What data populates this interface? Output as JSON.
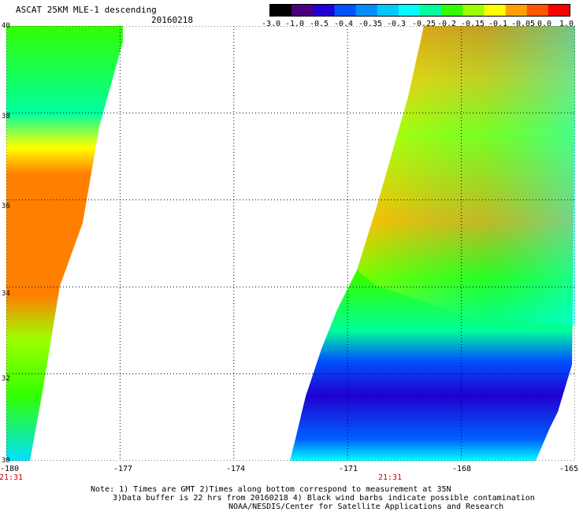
{
  "header": {
    "title": "ASCAT 25KM MLE-1 descending",
    "date": "20160218"
  },
  "colorbar": {
    "labels": [
      "-3.0",
      "-1.0",
      "-0.5",
      "-0.4",
      "-0.35",
      "-0.3",
      "-0.25",
      "-0.2",
      "-0.15",
      "-0.1",
      "-0.05",
      "0.0",
      "1.0"
    ],
    "colors": [
      "#000000",
      "#4a007f",
      "#1f00d8",
      "#0052ff",
      "#008dff",
      "#00c8ff",
      "#00ffff",
      "#00ff9a",
      "#33ff00",
      "#9cff00",
      "#ffff00",
      "#ffa000",
      "#ff5500",
      "#ff0000"
    ]
  },
  "map": {
    "lat_labels": [
      "40",
      "38",
      "36",
      "34",
      "32",
      "30"
    ],
    "lon_labels": [
      "-180",
      "-177",
      "-174",
      "-171",
      "-168",
      "-165"
    ],
    "lon_range": [
      -180,
      -165
    ],
    "lat_range": [
      30,
      40
    ],
    "swath_times": [
      "21:31",
      "21:31"
    ]
  },
  "notes": {
    "line1": "Note: 1) Times are GMT 2)Times along bottom correspond to measurement at 35N",
    "line2": "3)Data buffer is 22 hrs from 20160218 4) Black wind barbs indicate possible contamination",
    "line3": "NOAA/NESDIS/Center for Satellite Applications and Research"
  }
}
